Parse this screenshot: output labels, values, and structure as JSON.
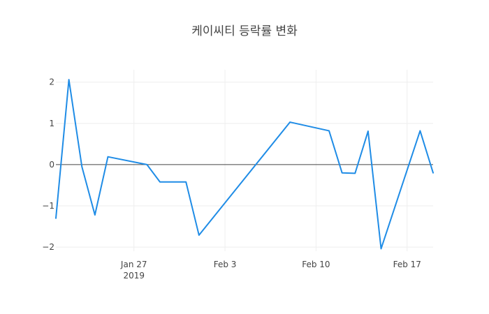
{
  "chart_data": {
    "type": "line",
    "title": "케이씨티 등락률 변화",
    "xlabel": "",
    "ylabel": "",
    "x_ticks": [
      {
        "date": "2019-01-27",
        "label": "Jan 27",
        "sublabel": "2019"
      },
      {
        "date": "2019-02-03",
        "label": "Feb 3",
        "sublabel": ""
      },
      {
        "date": "2019-02-10",
        "label": "Feb 10",
        "sublabel": ""
      },
      {
        "date": "2019-02-17",
        "label": "Feb 17",
        "sublabel": ""
      }
    ],
    "y_ticks": [
      {
        "value": 2,
        "label": "2"
      },
      {
        "value": 1,
        "label": "1"
      },
      {
        "value": 0,
        "label": "0"
      },
      {
        "value": -1,
        "label": "−1"
      },
      {
        "value": -2,
        "label": "−2"
      }
    ],
    "xlim": [
      "2019-01-21",
      "2019-02-19"
    ],
    "ylim": [
      -2.1,
      2.3
    ],
    "grid": true,
    "zero_line": true,
    "line_color": "#1f8ce6",
    "series": [
      {
        "values": [
          {
            "x": "2019-01-21",
            "y": -1.3
          },
          {
            "x": "2019-01-22",
            "y": 2.06
          },
          {
            "x": "2019-01-23",
            "y": -0.05
          },
          {
            "x": "2019-01-24",
            "y": -1.22
          },
          {
            "x": "2019-01-25",
            "y": 0.19
          },
          {
            "x": "2019-01-28",
            "y": 0.0
          },
          {
            "x": "2019-01-29",
            "y": -0.42
          },
          {
            "x": "2019-01-31",
            "y": -0.42
          },
          {
            "x": "2019-02-01",
            "y": -1.71
          },
          {
            "x": "2019-02-08",
            "y": 1.03
          },
          {
            "x": "2019-02-11",
            "y": 0.82
          },
          {
            "x": "2019-02-12",
            "y": -0.2
          },
          {
            "x": "2019-02-13",
            "y": -0.21
          },
          {
            "x": "2019-02-14",
            "y": 0.81
          },
          {
            "x": "2019-02-15",
            "y": -2.04
          },
          {
            "x": "2019-02-18",
            "y": 0.82
          },
          {
            "x": "2019-02-19",
            "y": -0.2
          }
        ]
      }
    ]
  }
}
